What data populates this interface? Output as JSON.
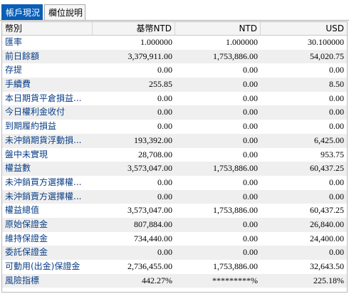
{
  "tabs": [
    {
      "label": "帳戶現況",
      "active": true
    },
    {
      "label": "欄位說明",
      "active": false
    }
  ],
  "table": {
    "columns": [
      "幣別",
      "基幣NTD",
      "NTD",
      "USD"
    ],
    "rows": [
      {
        "label": "匯率",
        "values": [
          "1.000000",
          "1.000000",
          "30.100000"
        ]
      },
      {
        "label": "前日餘額",
        "values": [
          "3,379,911.00",
          "1,753,886.00",
          "54,020.75"
        ]
      },
      {
        "label": "存提",
        "values": [
          "0.00",
          "0.00",
          "0.00"
        ]
      },
      {
        "label": "手續費",
        "values": [
          "255.85",
          "0.00",
          "8.50"
        ]
      },
      {
        "label": "本日期貨平倉損益...",
        "values": [
          "0.00",
          "0.00",
          "0.00"
        ]
      },
      {
        "label": "今日權利金收付",
        "values": [
          "0.00",
          "0.00",
          "0.00"
        ]
      },
      {
        "label": "到期履約損益",
        "values": [
          "0.00",
          "0.00",
          "0.00"
        ]
      },
      {
        "label": "未沖銷期貨浮動損...",
        "values": [
          "193,392.00",
          "0.00",
          "6,425.00"
        ]
      },
      {
        "label": "盤中未實現",
        "values": [
          "28,708.00",
          "0.00",
          "953.75"
        ]
      },
      {
        "label": "權益數",
        "values": [
          "3,573,047.00",
          "1,753,886.00",
          "60,437.25"
        ]
      },
      {
        "label": "未沖銷買方選擇權...",
        "values": [
          "0.00",
          "0.00",
          "0.00"
        ]
      },
      {
        "label": "未沖銷賣方選擇權...",
        "values": [
          "0.00",
          "0.00",
          "0.00"
        ]
      },
      {
        "label": "權益總值",
        "values": [
          "3,573,047.00",
          "1,753,886.00",
          "60,437.25"
        ]
      },
      {
        "label": "原始保證金",
        "values": [
          "807,884.00",
          "0.00",
          "26,840.00"
        ]
      },
      {
        "label": "維持保證金",
        "values": [
          "734,440.00",
          "0.00",
          "24,400.00"
        ]
      },
      {
        "label": "委託保證金",
        "values": [
          "0.00",
          "0.00",
          "0.00"
        ]
      },
      {
        "label": "可動用(出金)保證金",
        "values": [
          "2,736,455.00",
          "1,753,886.00",
          "32,643.50"
        ]
      },
      {
        "label": "風險指標",
        "values": [
          "442.27%",
          "*********%",
          "225.18%"
        ]
      }
    ]
  },
  "colors": {
    "accent": "#0a5fb6",
    "label_text": "#0a3f86",
    "alt_row": "#efefef"
  }
}
